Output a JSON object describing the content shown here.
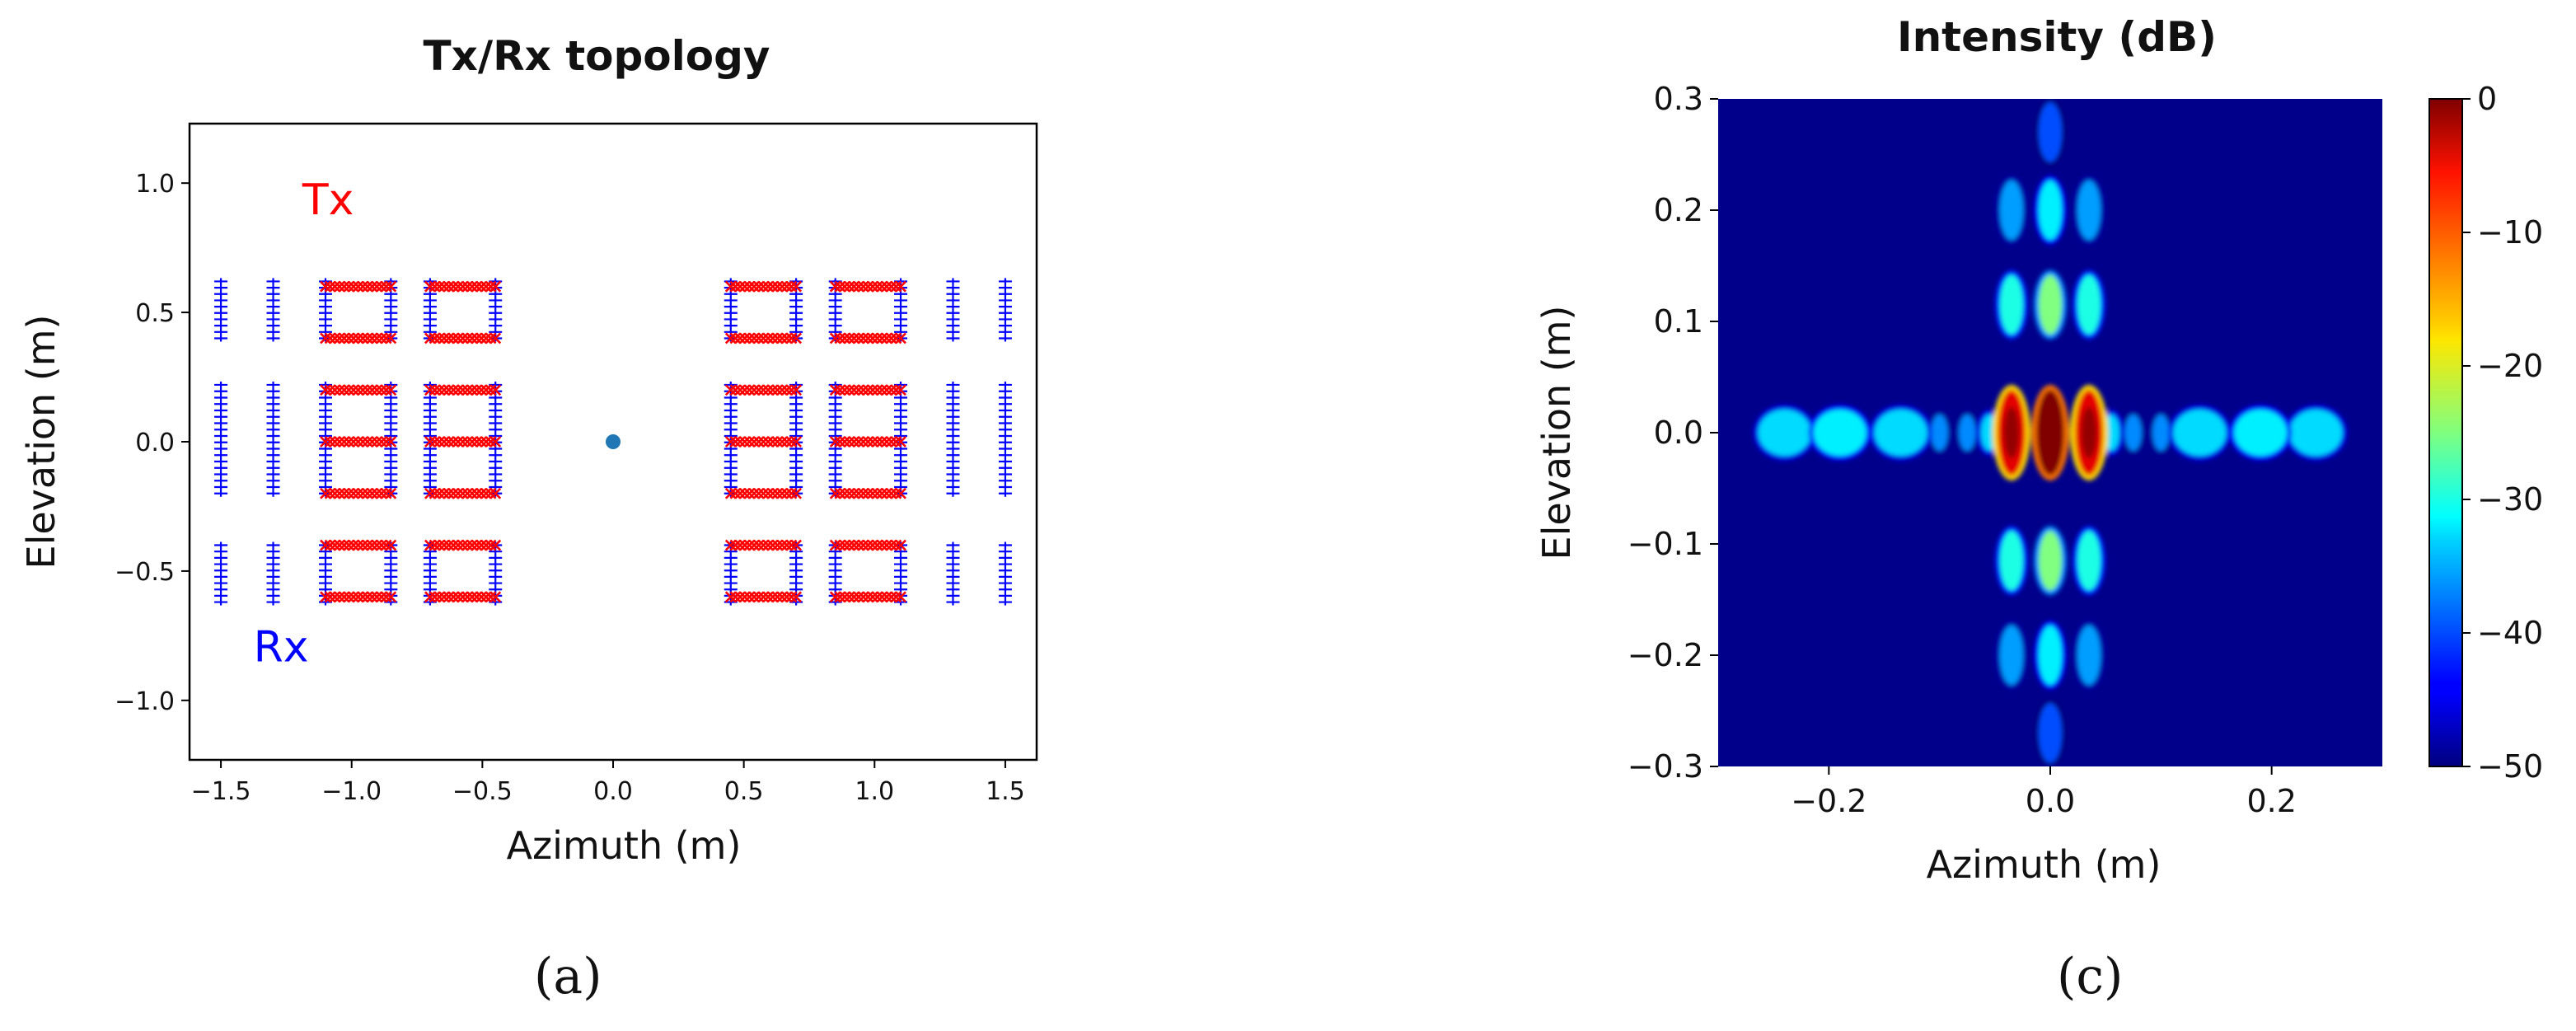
{
  "captions": {
    "a": "(a)",
    "c": "(c)"
  },
  "colors": {
    "tx": "#ff0000",
    "rx": "#0000ff",
    "center": "#1f77b4",
    "background": "#00008b"
  },
  "chart_data": [
    {
      "type": "scatter",
      "title": "Tx/Rx topology",
      "xlabel": "Azimuth (m)",
      "ylabel": "Elevation (m)",
      "xlim": [
        -1.62,
        1.62
      ],
      "ylim": [
        -1.23,
        1.23
      ],
      "xticks": [
        -1.5,
        -1.0,
        -0.5,
        0.0,
        0.5,
        1.0,
        1.5
      ],
      "xtick_labels": [
        "−1.5",
        "−1.0",
        "−0.5",
        "0.0",
        "0.5",
        "1.0",
        "1.5"
      ],
      "yticks": [
        -1.0,
        -0.5,
        0.0,
        0.5,
        1.0
      ],
      "ytick_labels": [
        "−1.0",
        "−0.5",
        "0.0",
        "0.5",
        "1.0"
      ],
      "grid": false,
      "annotations": [
        {
          "text": "Tx",
          "x": -1.09,
          "y": 0.88,
          "color": "#ff0000"
        },
        {
          "text": "Rx",
          "x": -1.27,
          "y": -0.85,
          "color": "#0000ff"
        }
      ],
      "tx_arrays": {
        "marker": "x",
        "x_columns": [
          -1.1,
          -0.85,
          -0.7,
          -0.45,
          0.45,
          0.7,
          0.85,
          1.1
        ],
        "rows": [
          {
            "y": 0.6,
            "columns": [
              -1.1,
              -0.85,
              -0.7,
              -0.45,
              0.45,
              0.7,
              0.85,
              1.1
            ]
          },
          {
            "y": 0.4,
            "columns": [
              -1.1,
              -0.85,
              -0.7,
              -0.45,
              0.45,
              0.7,
              0.85,
              1.1
            ]
          },
          {
            "y": 0.2,
            "columns": [
              -1.1,
              -0.85,
              -0.7,
              -0.45,
              0.45,
              0.7,
              0.85,
              1.1
            ]
          },
          {
            "y": 0.0,
            "columns": [
              -1.1,
              -0.85,
              -0.7,
              -0.45,
              0.45,
              0.7,
              0.85,
              1.1
            ]
          },
          {
            "y": -0.2,
            "columns": [
              -1.1,
              -0.85,
              -0.7,
              -0.45,
              0.45,
              0.7,
              0.85,
              1.1
            ]
          },
          {
            "y": -0.4,
            "columns": [
              -1.1,
              -0.85,
              -0.7,
              -0.45,
              0.45,
              0.7,
              0.85,
              1.1
            ]
          },
          {
            "y": -0.6,
            "columns": [
              -1.1,
              -0.85,
              -0.7,
              -0.45,
              0.45,
              0.7,
              0.85,
              1.1
            ]
          }
        ]
      },
      "rx_arrays": {
        "marker": "+",
        "columns": [
          -1.5,
          -1.3,
          -1.1,
          -0.85,
          -0.7,
          -0.45,
          0.45,
          0.7,
          0.85,
          1.1,
          1.3,
          1.5
        ],
        "segments": [
          {
            "y_from": 0.4,
            "y_to": 0.62
          },
          {
            "y_from": -0.2,
            "y_to": 0.22
          },
          {
            "y_from": -0.62,
            "y_to": -0.4
          }
        ]
      },
      "center_point": {
        "x": 0.0,
        "y": 0.0
      }
    },
    {
      "type": "heatmap",
      "title": "Intensity (dB)",
      "xlabel": "Azimuth (m)",
      "ylabel": "Elevation (m)",
      "xlim": [
        -0.3,
        0.3
      ],
      "ylim": [
        -0.3,
        0.3
      ],
      "xticks": [
        -0.2,
        0.0,
        0.2
      ],
      "xtick_labels": [
        "−0.2",
        "0.0",
        "0.2"
      ],
      "yticks": [
        -0.3,
        -0.2,
        -0.1,
        0.0,
        0.1,
        0.2,
        0.3
      ],
      "ytick_labels": [
        "−0.3",
        "−0.2",
        "−0.1",
        "0.0",
        "0.1",
        "0.2",
        "0.3"
      ],
      "colormap": "jet",
      "colorbar": {
        "range": [
          -50,
          0
        ],
        "ticks": [
          0,
          -10,
          -20,
          -30,
          -40,
          -50
        ],
        "tick_labels": [
          "0",
          "−10",
          "−20",
          "−30",
          "−40",
          "−50"
        ]
      },
      "lobes": [
        {
          "x": 0.0,
          "y": 0.0,
          "level_db": 0
        },
        {
          "x": -0.035,
          "y": 0.0,
          "level_db": -5
        },
        {
          "x": 0.035,
          "y": 0.0,
          "level_db": -5
        },
        {
          "x": -0.055,
          "y": 0.0,
          "level_db": -33
        },
        {
          "x": 0.055,
          "y": 0.0,
          "level_db": -33
        },
        {
          "x": -0.075,
          "y": 0.0,
          "level_db": -37
        },
        {
          "x": 0.075,
          "y": 0.0,
          "level_db": -37
        },
        {
          "x": -0.1,
          "y": 0.0,
          "level_db": -37
        },
        {
          "x": 0.1,
          "y": 0.0,
          "level_db": -37
        },
        {
          "x": -0.135,
          "y": 0.0,
          "level_db": -33
        },
        {
          "x": 0.135,
          "y": 0.0,
          "level_db": -33
        },
        {
          "x": -0.19,
          "y": 0.0,
          "level_db": -32
        },
        {
          "x": 0.19,
          "y": 0.0,
          "level_db": -32
        },
        {
          "x": -0.24,
          "y": 0.0,
          "level_db": -33
        },
        {
          "x": 0.24,
          "y": 0.0,
          "level_db": -33
        },
        {
          "x": 0.0,
          "y": 0.115,
          "level_db": -25
        },
        {
          "x": -0.035,
          "y": 0.115,
          "level_db": -30
        },
        {
          "x": 0.035,
          "y": 0.115,
          "level_db": -30
        },
        {
          "x": 0.0,
          "y": -0.115,
          "level_db": -25
        },
        {
          "x": -0.035,
          "y": -0.115,
          "level_db": -30
        },
        {
          "x": 0.035,
          "y": -0.115,
          "level_db": -30
        },
        {
          "x": 0.0,
          "y": 0.2,
          "level_db": -32
        },
        {
          "x": -0.035,
          "y": 0.2,
          "level_db": -36
        },
        {
          "x": 0.035,
          "y": 0.2,
          "level_db": -36
        },
        {
          "x": 0.0,
          "y": -0.2,
          "level_db": -32
        },
        {
          "x": -0.035,
          "y": -0.2,
          "level_db": -36
        },
        {
          "x": 0.035,
          "y": -0.2,
          "level_db": -36
        },
        {
          "x": 0.0,
          "y": 0.27,
          "level_db": -40
        },
        {
          "x": 0.0,
          "y": -0.27,
          "level_db": -40
        }
      ]
    }
  ]
}
